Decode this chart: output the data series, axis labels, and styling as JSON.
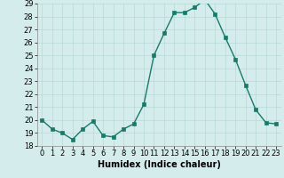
{
  "x": [
    0,
    1,
    2,
    3,
    4,
    5,
    6,
    7,
    8,
    9,
    10,
    11,
    12,
    13,
    14,
    15,
    16,
    17,
    18,
    19,
    20,
    21,
    22,
    23
  ],
  "y": [
    20.0,
    19.3,
    19.0,
    18.5,
    19.3,
    19.9,
    18.8,
    18.7,
    19.3,
    19.7,
    21.2,
    25.0,
    26.7,
    28.3,
    28.3,
    28.7,
    29.3,
    28.2,
    26.4,
    24.7,
    22.7,
    20.8,
    19.8,
    19.7
  ],
  "line_color": "#1a7a6a",
  "marker_color": "#1a7a6a",
  "bg_color": "#d4edec",
  "grid_color": "#b8d8d5",
  "xlabel": "Humidex (Indice chaleur)",
  "ylim": [
    18,
    29
  ],
  "xlim": [
    -0.5,
    23.5
  ],
  "yticks": [
    18,
    19,
    20,
    21,
    22,
    23,
    24,
    25,
    26,
    27,
    28,
    29
  ],
  "xticks": [
    0,
    1,
    2,
    3,
    4,
    5,
    6,
    7,
    8,
    9,
    10,
    11,
    12,
    13,
    14,
    15,
    16,
    17,
    18,
    19,
    20,
    21,
    22,
    23
  ],
  "xtick_labels": [
    "0",
    "1",
    "2",
    "3",
    "4",
    "5",
    "6",
    "7",
    "8",
    "9",
    "10",
    "11",
    "12",
    "13",
    "14",
    "15",
    "16",
    "17",
    "18",
    "19",
    "20",
    "21",
    "22",
    "23"
  ],
  "xlabel_fontsize": 7,
  "tick_fontsize": 6,
  "linewidth": 1.0,
  "markersize": 2.5
}
